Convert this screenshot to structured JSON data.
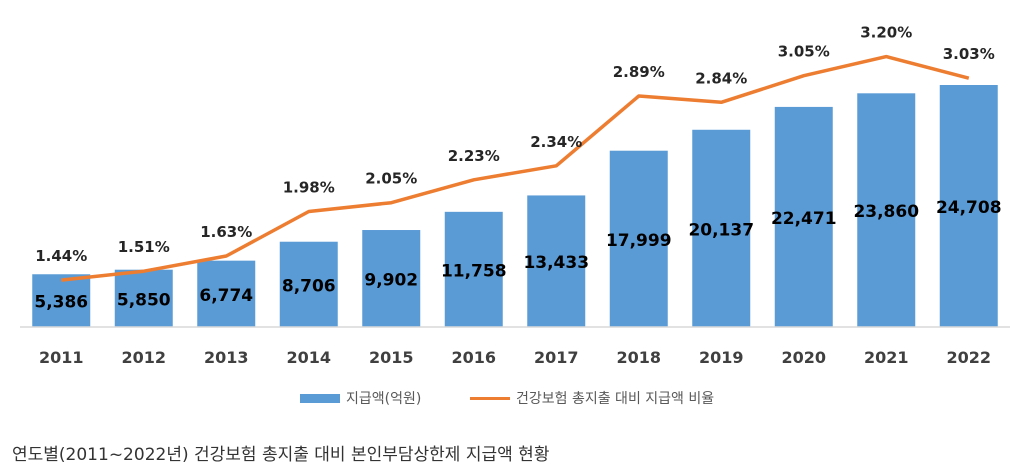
{
  "chart_data": {
    "type": "bar",
    "categories": [
      "2011",
      "2012",
      "2013",
      "2014",
      "2015",
      "2016",
      "2017",
      "2018",
      "2019",
      "2020",
      "2021",
      "2022"
    ],
    "series": [
      {
        "name": "지급액(억원)",
        "kind": "bar",
        "values": [
          5386,
          5850,
          6774,
          8706,
          9902,
          11758,
          13433,
          17999,
          20137,
          22471,
          23860,
          24708
        ],
        "labels": [
          "5,386",
          "5,850",
          "6,774",
          "8,706",
          "9,902",
          "11,758",
          "13,433",
          "17,999",
          "20,137",
          "22,471",
          "23,860",
          "24,708"
        ]
      },
      {
        "name": "건강보험 총지출 대비 지급액 비율",
        "kind": "line",
        "values": [
          1.44,
          1.51,
          1.63,
          1.98,
          2.05,
          2.23,
          2.34,
          2.89,
          2.84,
          3.05,
          3.2,
          3.03
        ],
        "labels": [
          "1.44%",
          "1.51%",
          "1.63%",
          "1.98%",
          "2.05%",
          "2.23%",
          "2.34%",
          "2.89%",
          "2.84%",
          "3.05%",
          "3.20%",
          "3.03%"
        ]
      }
    ],
    "ylim_bar": [
      0,
      27000
    ],
    "ylim_line": [
      0.5,
      3.5
    ],
    "grid": false,
    "legend": "bottom",
    "colors": {
      "bar": "#5b9bd5",
      "line": "#ed7d31",
      "axis": "#d9d9d9"
    }
  },
  "caption": "연도별(2011~2022년) 건강보험 총지출 대비 본인부담상한제 지급액 현황"
}
